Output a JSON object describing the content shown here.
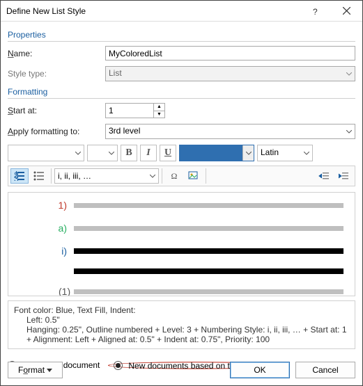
{
  "title": "Define New List Style",
  "sections": {
    "props": "Properties",
    "fmt": "Formatting"
  },
  "labels": {
    "name": "Name:",
    "style_type": "Style type:",
    "start_at": "Start at:",
    "apply_to": "Apply formatting to:"
  },
  "values": {
    "name": "MyColoredList",
    "style_type": "List",
    "start_at": "1",
    "apply_to": "3rd level",
    "font_name": "",
    "font_size": "",
    "color_swatch": "#2f6fb0",
    "script": "Latin",
    "number_format": "i, ii, iii, …"
  },
  "fmt_buttons": {
    "bold": "B",
    "italic": "I",
    "underline": "U"
  },
  "preview": {
    "rows": [
      {
        "num": "1)",
        "color": "#c0392b",
        "indent": 0,
        "line": "gray",
        "thick": 7
      },
      {
        "num": "a)",
        "color": "#27ae60",
        "indent": 18,
        "line": "gray",
        "thick": 7
      },
      {
        "num": "i)",
        "color": "#1a5ea0",
        "indent": 38,
        "line": "black",
        "thick": 8
      },
      {
        "num": "",
        "color": "#000",
        "indent": 38,
        "line": "black",
        "thick": 8
      },
      {
        "num": "(1)",
        "color": "#555",
        "indent": 56,
        "line": "gray",
        "thick": 7
      }
    ]
  },
  "desc": {
    "l1": "Font color: Blue, Text Fill, Indent:",
    "l2": "Left:  0.5\"",
    "l3": "Hanging:  0.25\", Outline numbered + Level: 3 + Numbering Style: i, ii, iii, … + Start at: 1 + Alignment: Left + Aligned at:  0.5\" + Indent at:  0.75\", Priority: 100"
  },
  "radios": {
    "only": "Only in this document",
    "template": "New documents based on this template",
    "selected": "template"
  },
  "buttons": {
    "format": "Format",
    "ok": "OK",
    "cancel": "Cancel"
  }
}
